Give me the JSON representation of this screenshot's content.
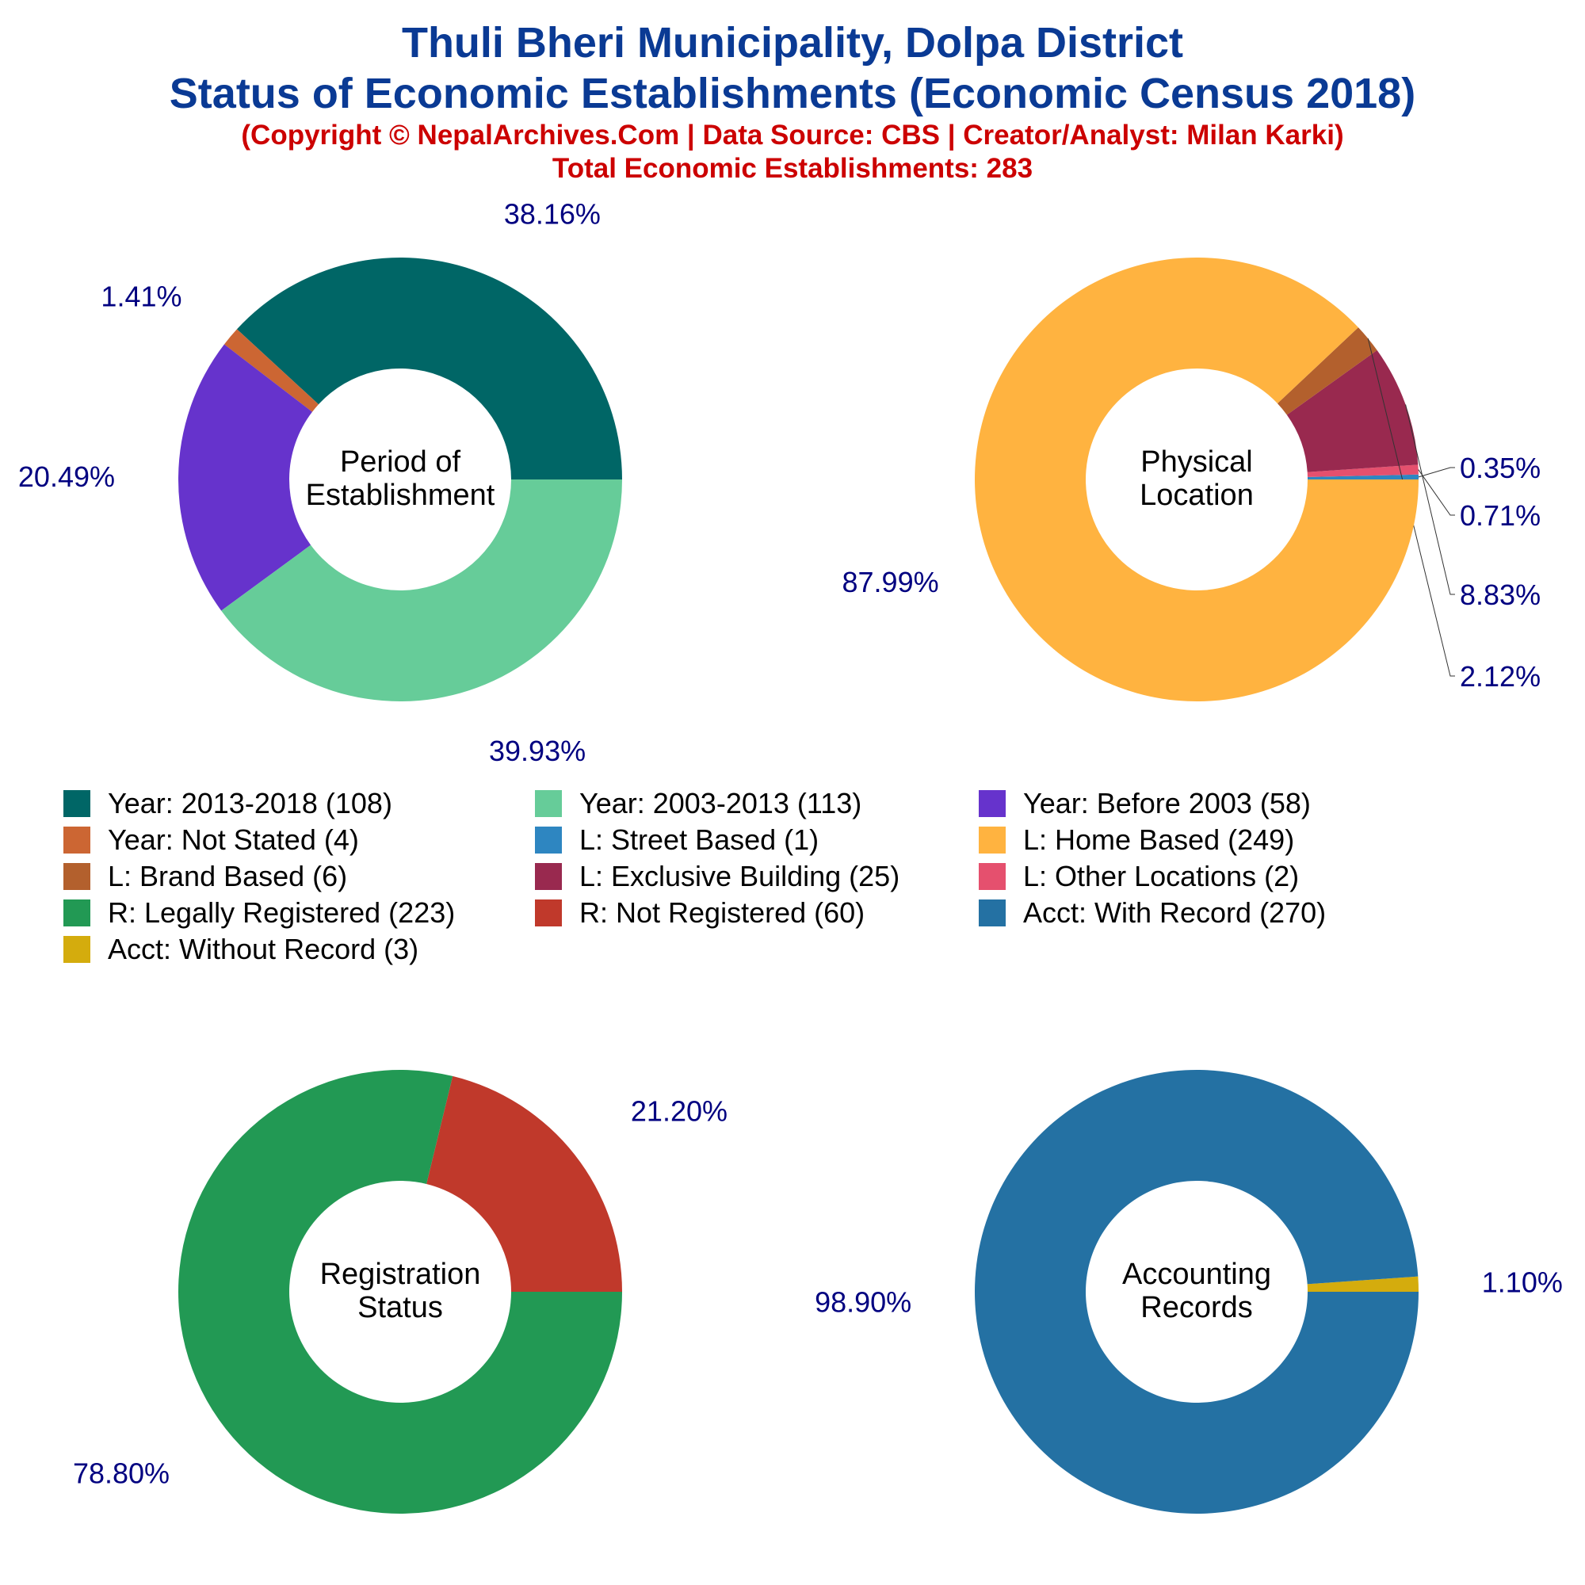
{
  "header": {
    "title_line1": "Thuli Bheri Municipality, Dolpa District",
    "title_line2": "Status of Economic Establishments (Economic Census 2018)",
    "copyright": "(Copyright © NepalArchives.Com | Data Source: CBS | Creator/Analyst: Milan Karki)",
    "total": "Total Economic Establishments: 283"
  },
  "legend": [
    {
      "label": "Year: 2013-2018 (108)",
      "color": "#006666"
    },
    {
      "label": "Year: 2003-2013 (113)",
      "color": "#66cc99"
    },
    {
      "label": "Year: Before 2003 (58)",
      "color": "#6633cc"
    },
    {
      "label": "Year: Not Stated (4)",
      "color": "#cc6633"
    },
    {
      "label": "L: Street Based (1)",
      "color": "#2e86c1"
    },
    {
      "label": "L: Home Based (249)",
      "color": "#ffb340"
    },
    {
      "label": "L: Brand Based (6)",
      "color": "#b3602d"
    },
    {
      "label": "L: Exclusive Building (25)",
      "color": "#99294f"
    },
    {
      "label": "L: Other Locations (2)",
      "color": "#e5506e"
    },
    {
      "label": "R: Legally Registered (223)",
      "color": "#229954"
    },
    {
      "label": "R: Not Registered (60)",
      "color": "#c0392b"
    },
    {
      "label": "Acct: With Record (270)",
      "color": "#2471a3"
    },
    {
      "label": "Acct: Without Record (3)",
      "color": "#d4ac0d"
    }
  ],
  "chart_data": [
    {
      "type": "pie",
      "center_label": [
        "Period of",
        "Establishment"
      ],
      "slices": [
        {
          "name": "Year: 2013-2018",
          "value": 108,
          "label": "38.16%",
          "color": "#006666"
        },
        {
          "name": "Year: Not Stated",
          "value": 4,
          "label": "1.41%",
          "color": "#cc6633"
        },
        {
          "name": "Year: Before 2003",
          "value": 58,
          "label": "20.49%",
          "color": "#6633cc"
        },
        {
          "name": "Year: 2003-2013",
          "value": 113,
          "label": "39.93%",
          "color": "#66cc99"
        }
      ]
    },
    {
      "type": "pie",
      "center_label": [
        "Physical",
        "Location"
      ],
      "slices": [
        {
          "name": "L: Street Based",
          "value": 1,
          "label": "0.35%",
          "color": "#2e86c1"
        },
        {
          "name": "L: Other Locations",
          "value": 2,
          "label": "0.71%",
          "color": "#e5506e"
        },
        {
          "name": "L: Exclusive Building",
          "value": 25,
          "label": "8.83%",
          "color": "#99294f"
        },
        {
          "name": "L: Brand Based",
          "value": 6,
          "label": "2.12%",
          "color": "#b3602d"
        },
        {
          "name": "L: Home Based",
          "value": 249,
          "label": "87.99%",
          "color": "#ffb340"
        }
      ]
    },
    {
      "type": "pie",
      "center_label": [
        "Registration",
        "Status"
      ],
      "slices": [
        {
          "name": "R: Not Registered",
          "value": 60,
          "label": "21.20%",
          "color": "#c0392b"
        },
        {
          "name": "R: Legally Registered",
          "value": 223,
          "label": "78.80%",
          "color": "#229954"
        }
      ]
    },
    {
      "type": "pie",
      "center_label": [
        "Accounting",
        "Records"
      ],
      "slices": [
        {
          "name": "Acct: Without Record",
          "value": 3,
          "label": "1.10%",
          "color": "#d4ac0d"
        },
        {
          "name": "Acct: With Record",
          "value": 270,
          "label": "98.90%",
          "color": "#2471a3"
        }
      ]
    }
  ]
}
